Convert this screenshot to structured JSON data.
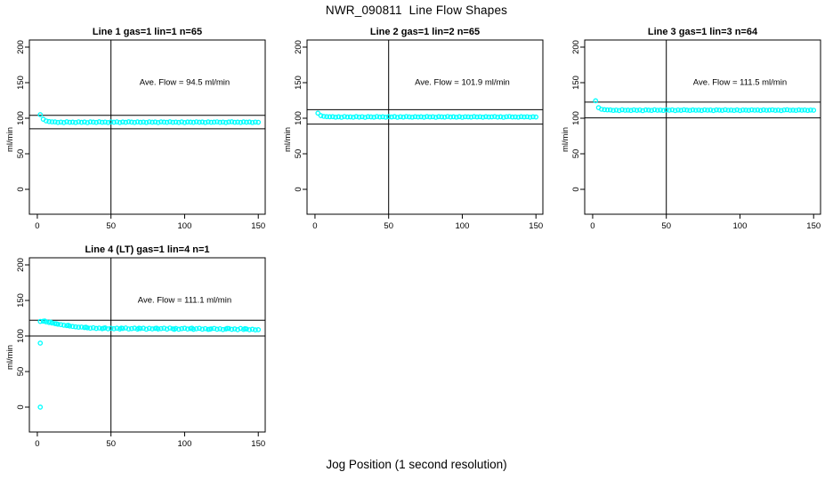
{
  "chart": {
    "title": "NWR_090811  Line Flow Shapes",
    "xlabel": "Jog Position (1 second resolution)",
    "ylabel": "ml/min",
    "point_color": "#00FFFF",
    "axis_color": "#000000",
    "background": "#FFFFFF"
  },
  "chart_data": [
    {
      "type": "scatter",
      "title": "Line 1 gas=1 lin=1 n=65",
      "gas": 1,
      "lin": 1,
      "n": 65,
      "ylabel": "ml/min",
      "annotation": "Ave. Flow =  94.5  ml/min",
      "ave_flow_ml_min": 94.5,
      "xlim": [
        -5.4,
        154.7
      ],
      "ylim": [
        -35,
        210
      ],
      "xticks": [
        0,
        50,
        100,
        150
      ],
      "yticks": [
        0,
        50,
        100,
        150,
        200
      ],
      "vline_x": 50,
      "hlines": [
        104.0,
        85.1
      ],
      "annotation_pos": [
        100,
        147
      ],
      "x_start": 2,
      "x_step": 2,
      "y": [
        105,
        98.6,
        96.2,
        95.3,
        94.9,
        94.8,
        94.1,
        94.6,
        93.9,
        95,
        94.3,
        94.5,
        94,
        94.9,
        94.2,
        94.7,
        93.8,
        94.8,
        94.5,
        94.1,
        95,
        94.3,
        94.6,
        94,
        94.8,
        94.4,
        94.9,
        93.9,
        94.7,
        94.2,
        95,
        94.5,
        94.1,
        94.8,
        94.3,
        94.6,
        94,
        94.9,
        94.4,
        94.7,
        93.9,
        94.8,
        94.5,
        94.2,
        95,
        94.3,
        94.6,
        94.1,
        94.8,
        93.9,
        94.7,
        94.5,
        94.2,
        94.9,
        94.4,
        94.7,
        94,
        94.8,
        94.3,
        94.5,
        94.9,
        94.2,
        94.6,
        93.9,
        94.7,
        95,
        94.3,
        94.5,
        94.1,
        94.8,
        94.4,
        94.7,
        94,
        94.6,
        94.3
      ],
      "outliers": []
    },
    {
      "type": "scatter",
      "title": "Line 2 gas=1 lin=2 n=65",
      "gas": 1,
      "lin": 2,
      "n": 65,
      "ylabel": "ml/min",
      "annotation": "Ave. Flow =  101.9  ml/min",
      "ave_flow_ml_min": 101.9,
      "xlim": [
        -5.4,
        154.7
      ],
      "ylim": [
        -35,
        210
      ],
      "xticks": [
        0,
        50,
        100,
        150
      ],
      "yticks": [
        0,
        50,
        100,
        150,
        200
      ],
      "vline_x": 50,
      "hlines": [
        112.1,
        91.7
      ],
      "annotation_pos": [
        100,
        147
      ],
      "x_start": 2,
      "x_step": 2,
      "y": [
        107.2,
        103.6,
        102.6,
        102.2,
        102,
        102.2,
        101.5,
        102,
        101.3,
        102.4,
        101.7,
        101.9,
        101.4,
        102.3,
        101.6,
        102.1,
        101.2,
        102.2,
        101.9,
        101.5,
        102.4,
        101.7,
        102,
        101.4,
        102.2,
        101.8,
        102.3,
        101.3,
        102.1,
        101.6,
        102.4,
        101.9,
        101.5,
        102.2,
        101.7,
        102,
        101.4,
        102.3,
        101.8,
        102.1,
        101.3,
        102.2,
        101.9,
        101.6,
        102.4,
        101.7,
        102,
        101.5,
        102.2,
        101.3,
        102.1,
        101.9,
        101.6,
        102.3,
        101.8,
        102.1,
        101.4,
        102.2,
        101.7,
        101.9,
        102.3,
        101.6,
        102,
        101.3,
        102.1,
        102.4,
        101.7,
        101.9,
        101.5,
        102.2,
        101.8,
        102.1,
        101.4,
        102,
        101.7
      ],
      "outliers": []
    },
    {
      "type": "scatter",
      "title": "Line 3 gas=1 lin=3 n=64",
      "gas": 1,
      "lin": 3,
      "n": 64,
      "ylabel": "ml/min",
      "annotation": "Ave. Flow =  111.5  ml/min",
      "ave_flow_ml_min": 111.5,
      "xlim": [
        -5.4,
        154.7
      ],
      "ylim": [
        -35,
        210
      ],
      "xticks": [
        0,
        50,
        100,
        150
      ],
      "yticks": [
        0,
        50,
        100,
        150,
        200
      ],
      "vline_x": 50,
      "hlines": [
        122.7,
        100.4
      ],
      "annotation_pos": [
        100,
        147
      ],
      "x_start": 2,
      "x_step": 2,
      "y": [
        124.5,
        114.8,
        112.6,
        112,
        111.7,
        111.7,
        111,
        111.5,
        110.8,
        111.9,
        111.2,
        111.4,
        110.9,
        111.8,
        111.1,
        111.6,
        110.7,
        111.7,
        111.4,
        111,
        111.9,
        111.2,
        111.5,
        110.9,
        111.7,
        111.3,
        111.8,
        110.8,
        111.6,
        111.1,
        111.9,
        111.4,
        111,
        111.7,
        111.2,
        111.5,
        110.9,
        111.8,
        111.3,
        111.6,
        110.8,
        111.7,
        111.4,
        111.1,
        111.9,
        111.2,
        111.5,
        111,
        111.7,
        110.8,
        111.6,
        111.4,
        111.1,
        111.8,
        111.3,
        111.6,
        110.9,
        111.7,
        111.2,
        111.4,
        111.8,
        111.1,
        111.5,
        110.8,
        111.6,
        111.9,
        111.2,
        111.4,
        111,
        111.7,
        111.3,
        111.6,
        110.9,
        111.5,
        111.2
      ],
      "outliers": []
    },
    {
      "type": "scatter",
      "title": "Line 4 (LT) gas=1 lin=4 n=1",
      "gas": 1,
      "lin": 4,
      "n": 1,
      "ylabel": "ml/min",
      "annotation": "Ave. Flow =  111.1  ml/min",
      "ave_flow_ml_min": 111.1,
      "xlim": [
        -5.4,
        154.7
      ],
      "ylim": [
        -35,
        210
      ],
      "xticks": [
        0,
        50,
        100,
        150
      ],
      "yticks": [
        0,
        50,
        100,
        150,
        200
      ],
      "vline_x": 50,
      "hlines": [
        122.2,
        100.0
      ],
      "annotation_pos": [
        100,
        147
      ],
      "x_start": 2,
      "x_step": 2,
      "y": [
        120.5,
        120.8,
        119.9,
        119,
        118.3,
        117.4,
        116.6,
        116,
        115.2,
        114.6,
        114,
        113.4,
        112.9,
        112.4,
        112.6,
        111.9,
        111.5,
        111,
        111.6,
        110.6,
        111.2,
        110.3,
        111.4,
        110.1,
        110.8,
        110.2,
        111,
        109.8,
        110.6,
        111.3,
        109.9,
        110.4,
        111.1,
        109.7,
        110.5,
        110.9,
        109.6,
        110.8,
        110,
        110.6,
        109.8,
        110.4,
        111,
        109.7,
        111.2,
        110.1,
        110.7,
        109.5,
        110.3,
        110.9,
        109.8,
        110.5,
        109.4,
        110.2,
        110.8,
        109.6,
        110.4,
        109.3,
        110.1,
        110.7,
        109.5,
        110.2,
        109.1,
        109.9,
        110.5,
        109.4,
        110,
        108.9,
        110.6,
        109.2,
        109.8,
        108.8,
        109.5,
        108.6,
        108.9
      ],
      "outliers": [
        [
          2,
          0
        ],
        [
          2,
          90
        ],
        [
          5,
          121.2
        ],
        [
          9,
          119.6
        ],
        [
          13,
          117.2
        ],
        [
          21,
          115.1
        ],
        [
          33,
          112.3
        ],
        [
          45,
          110.9
        ],
        [
          57,
          111.1
        ],
        [
          69,
          110.9
        ],
        [
          81,
          111
        ],
        [
          93,
          109.4
        ],
        [
          105,
          111
        ],
        [
          117,
          109.6
        ],
        [
          129,
          110.7
        ],
        [
          141,
          110.3
        ]
      ]
    }
  ]
}
